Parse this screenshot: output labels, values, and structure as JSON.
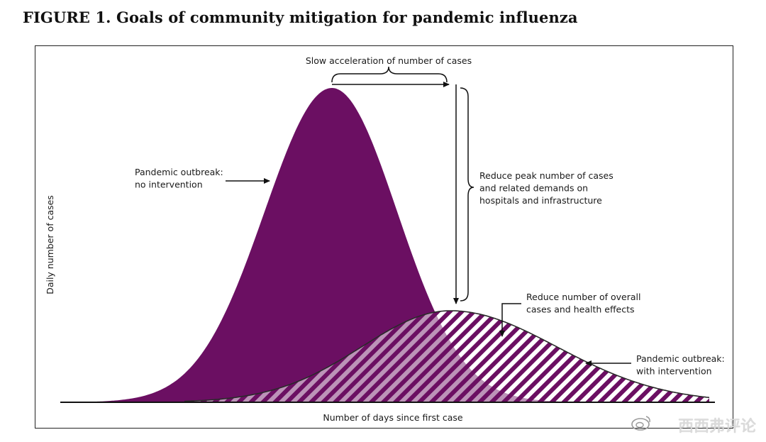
{
  "figure": {
    "title": "FIGURE 1. Goals of community mitigation for pandemic influenza"
  },
  "colors": {
    "no_intervention_fill": "#6b0f62",
    "intervention_hatch": "#6b0f62",
    "axis": "#111111"
  },
  "annotations": {
    "slow_acceleration": "Slow acceleration of number of cases",
    "reduce_peak": [
      "Reduce peak number of cases",
      "and related demands on",
      "hospitals and infrastructure"
    ],
    "reduce_overall": [
      "Reduce number of overall",
      "cases and health effects"
    ],
    "outbreak_no_intervention": [
      "Pandemic outbreak:",
      "no intervention"
    ],
    "outbreak_with_intervention": [
      "Pandemic outbreak:",
      "with intervention"
    ]
  },
  "axes": {
    "ylabel": "Daily number of cases",
    "xlabel": "Number of days since first case"
  },
  "watermark": {
    "text": "西西弗评论",
    "icon": "weibo-logo-icon"
  }
}
